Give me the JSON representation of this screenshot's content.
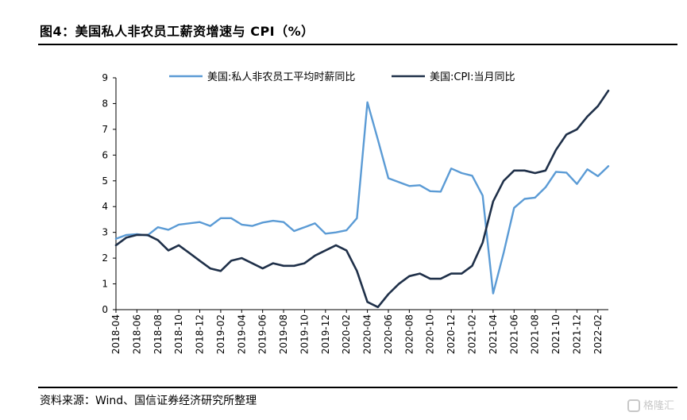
{
  "figure": {
    "title": "图4：美国私人非农员工薪资增速与 CPI（%）",
    "source": "资料来源：Wind、国信证券经济研究所整理",
    "watermark": "格隆汇"
  },
  "chart_data": {
    "type": "line",
    "title": "",
    "xlabel": "",
    "ylabel": "",
    "ylim": [
      0,
      9
    ],
    "yticks": [
      0,
      1,
      2,
      3,
      4,
      5,
      6,
      7,
      8,
      9
    ],
    "grid": false,
    "legend_position": "top-center",
    "x": [
      "2018-04",
      "2018-05",
      "2018-06",
      "2018-07",
      "2018-08",
      "2018-09",
      "2018-10",
      "2018-11",
      "2018-12",
      "2019-01",
      "2019-02",
      "2019-03",
      "2019-04",
      "2019-05",
      "2019-06",
      "2019-07",
      "2019-08",
      "2019-09",
      "2019-10",
      "2019-11",
      "2019-12",
      "2020-01",
      "2020-02",
      "2020-03",
      "2020-04",
      "2020-05",
      "2020-06",
      "2020-07",
      "2020-08",
      "2020-09",
      "2020-10",
      "2020-11",
      "2020-12",
      "2021-01",
      "2021-02",
      "2021-03",
      "2021-04",
      "2021-05",
      "2021-06",
      "2021-07",
      "2021-08",
      "2021-09",
      "2021-10",
      "2021-11",
      "2021-12",
      "2022-01",
      "2022-02",
      "2022-03"
    ],
    "tick_labels": [
      "2018-04",
      "2018-06",
      "2018-08",
      "2018-10",
      "2018-12",
      "2019-02",
      "2019-04",
      "2019-06",
      "2019-08",
      "2019-10",
      "2019-12",
      "2020-02",
      "2020-04",
      "2020-06",
      "2020-08",
      "2020-10",
      "2020-12",
      "2021-02",
      "2021-04",
      "2021-06",
      "2021-08",
      "2021-10",
      "2021-12",
      "2022-02"
    ],
    "series": [
      {
        "name": "美国:私人非农员工平均时薪同比",
        "color": "#5b9bd5",
        "values": [
          2.75,
          2.9,
          2.93,
          2.88,
          3.2,
          3.1,
          3.3,
          3.35,
          3.4,
          3.25,
          3.55,
          3.55,
          3.3,
          3.25,
          3.38,
          3.45,
          3.4,
          3.05,
          3.2,
          3.35,
          2.95,
          3.0,
          3.08,
          3.55,
          8.05,
          6.6,
          5.1,
          4.95,
          4.8,
          4.83,
          4.6,
          4.58,
          5.48,
          5.3,
          5.2,
          4.43,
          0.63,
          2.2,
          3.95,
          4.3,
          4.35,
          4.75,
          5.35,
          5.32,
          4.88,
          5.45,
          5.18,
          5.57
        ]
      },
      {
        "name": "美国:CPI:当月同比",
        "color": "#1f3049",
        "values": [
          2.5,
          2.8,
          2.9,
          2.9,
          2.7,
          2.3,
          2.5,
          2.2,
          1.9,
          1.6,
          1.5,
          1.9,
          2.0,
          1.8,
          1.6,
          1.8,
          1.7,
          1.7,
          1.8,
          2.1,
          2.3,
          2.5,
          2.3,
          1.5,
          0.3,
          0.1,
          0.6,
          1.0,
          1.3,
          1.4,
          1.2,
          1.2,
          1.4,
          1.4,
          1.7,
          2.6,
          4.2,
          5.0,
          5.4,
          5.4,
          5.3,
          5.4,
          6.2,
          6.8,
          7.0,
          7.5,
          7.9,
          8.5
        ]
      }
    ]
  }
}
